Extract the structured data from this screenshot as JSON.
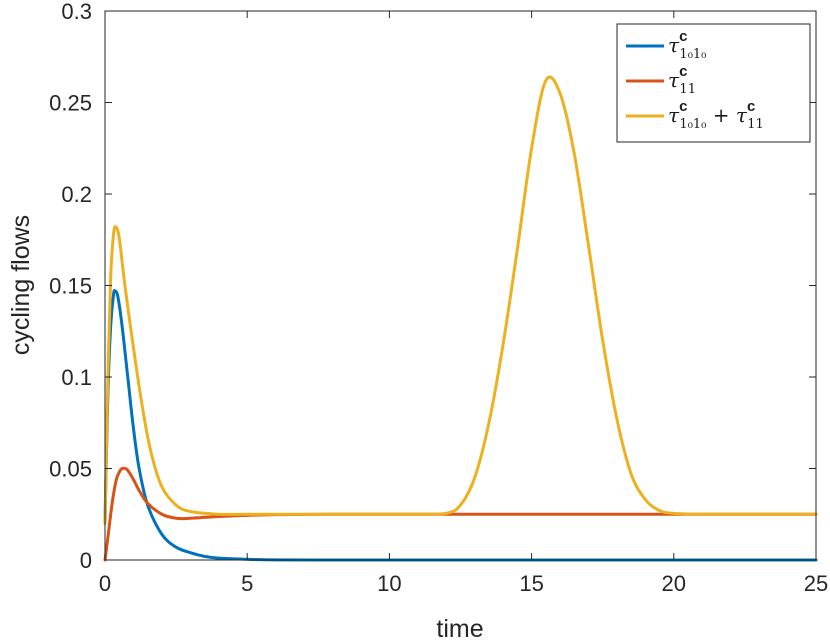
{
  "chart_data": {
    "type": "line",
    "xlabel": "time",
    "ylabel": "cycling  flows",
    "xlim": [
      0,
      25
    ],
    "ylim": [
      0,
      0.3
    ],
    "xticks": [
      0,
      5,
      10,
      15,
      20,
      25
    ],
    "xtick_labels": [
      "0",
      "5",
      "10",
      "15",
      "20",
      "25"
    ],
    "yticks": [
      0,
      0.05,
      0.1,
      0.15,
      0.2,
      0.25,
      0.3
    ],
    "ytick_labels": [
      "0",
      "0.05",
      "0.1",
      "0.15",
      "0.2",
      "0.25",
      "0.3"
    ],
    "grid": false,
    "legend_position": "top-right",
    "series": [
      {
        "legend_parts": [
          {
            "t": "τ",
            "style": "base"
          },
          {
            "t": "c",
            "style": "sup"
          },
          {
            "t": "1₀1₀",
            "style": "sub"
          }
        ],
        "color": "#0072BD",
        "x": [
          0,
          0.1,
          0.2,
          0.3,
          0.35,
          0.45,
          0.6,
          0.8,
          1.0,
          1.2,
          1.5,
          2.0,
          2.5,
          3.0,
          3.5,
          4.0,
          5.0,
          6.0,
          8.0,
          10,
          15,
          20,
          25
        ],
        "y": [
          0.02,
          0.09,
          0.128,
          0.145,
          0.147,
          0.144,
          0.128,
          0.1,
          0.072,
          0.05,
          0.03,
          0.014,
          0.007,
          0.004,
          0.002,
          0.001,
          0.0004,
          0.0001,
          0,
          0,
          0,
          0,
          0
        ]
      },
      {
        "legend_parts": [
          {
            "t": "τ",
            "style": "base"
          },
          {
            "t": "c",
            "style": "sup"
          },
          {
            "t": "11",
            "style": "sub"
          }
        ],
        "color": "#D95319",
        "x": [
          0,
          0.1,
          0.2,
          0.3,
          0.4,
          0.5,
          0.6,
          0.7,
          0.8,
          1.0,
          1.2,
          1.5,
          2.0,
          2.5,
          3.0,
          4.0,
          5.0,
          6.0,
          8.0,
          10,
          12,
          15,
          20,
          25
        ],
        "y": [
          0,
          0.012,
          0.025,
          0.036,
          0.044,
          0.048,
          0.05,
          0.05,
          0.049,
          0.044,
          0.038,
          0.031,
          0.025,
          0.0228,
          0.0228,
          0.0238,
          0.0244,
          0.0248,
          0.025,
          0.025,
          0.025,
          0.025,
          0.025,
          0.025
        ]
      },
      {
        "legend_parts": [
          {
            "t": "τ",
            "style": "base"
          },
          {
            "t": "c",
            "style": "sup"
          },
          {
            "t": "1₀1₀",
            "style": "sub"
          },
          {
            "t": " + τ",
            "style": "base"
          },
          {
            "t": "c",
            "style": "sup"
          },
          {
            "t": "11",
            "style": "sub"
          }
        ],
        "color": "#EDB120",
        "x": [
          0,
          0.1,
          0.2,
          0.3,
          0.38,
          0.5,
          0.7,
          1.0,
          1.3,
          1.6,
          2.0,
          2.5,
          3.0,
          4.0,
          5.0,
          6.0,
          8.0,
          10,
          11,
          12,
          12.5,
          13,
          13.5,
          14,
          14.5,
          15,
          15.5,
          16,
          16.5,
          17,
          17.5,
          18,
          18.5,
          19,
          19.5,
          20,
          21,
          22,
          25
        ],
        "y": [
          0.02,
          0.1,
          0.155,
          0.178,
          0.182,
          0.176,
          0.15,
          0.116,
          0.085,
          0.06,
          0.04,
          0.03,
          0.0265,
          0.025,
          0.025,
          0.025,
          0.025,
          0.025,
          0.025,
          0.0255,
          0.03,
          0.045,
          0.075,
          0.118,
          0.17,
          0.225,
          0.262,
          0.255,
          0.222,
          0.172,
          0.12,
          0.077,
          0.047,
          0.033,
          0.027,
          0.0255,
          0.025,
          0.025,
          0.025
        ]
      }
    ]
  }
}
